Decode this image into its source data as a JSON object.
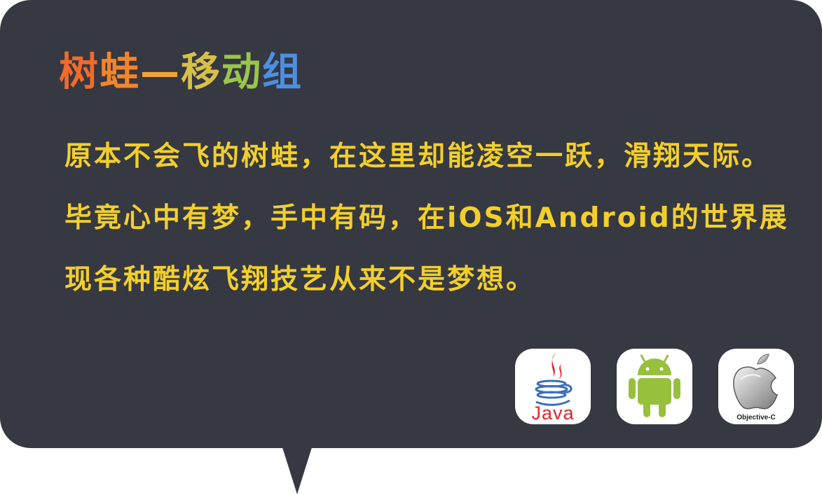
{
  "title": {
    "chars": [
      "树",
      "蛙",
      "—",
      "移",
      "动",
      "组"
    ],
    "colors": [
      "#f26b2a",
      "#f5852a",
      "#f2a33a",
      "#d7c04a",
      "#9bc64d",
      "#4d8fe0"
    ]
  },
  "description": "原本不会飞的树蛙，在这里却能凌空一跃，滑翔天际。毕竟心中有梦，手中有码，在iOS和Android的世界展现各种酷炫飞翔技艺从来不是梦想。",
  "text_color": "#f2cf2c",
  "bubble_color": "#363842",
  "platforms": {
    "java": {
      "icon": "java-logo-icon",
      "caption": "Java"
    },
    "android": {
      "icon": "android-robot-icon",
      "color": "#97c03d"
    },
    "objective_c": {
      "icon": "apple-logo-icon",
      "caption": "Objective-C"
    }
  }
}
